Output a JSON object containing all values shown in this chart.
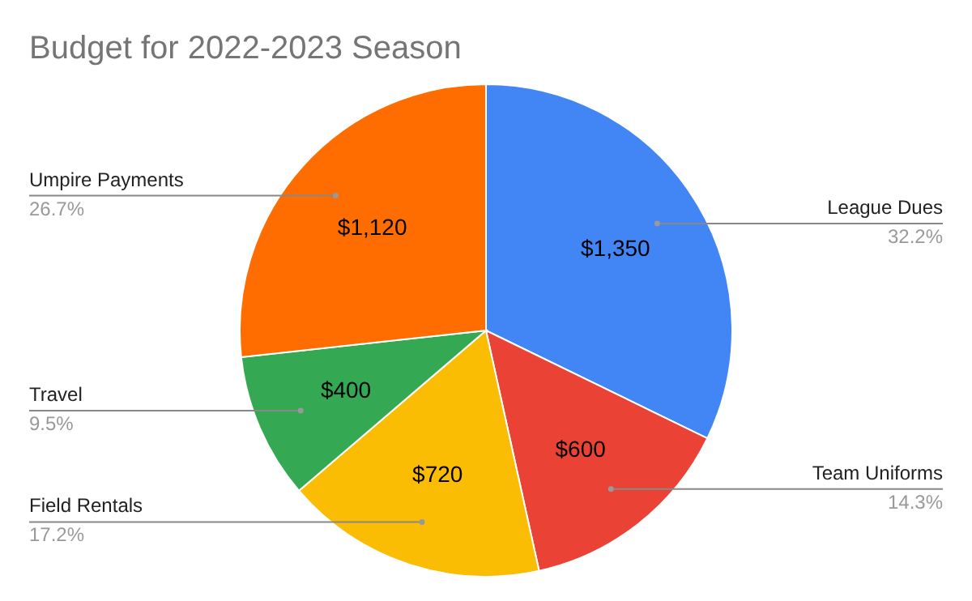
{
  "chart_data": {
    "type": "pie",
    "title": "Budget for 2022-2023 Season",
    "categories": [
      "League Dues",
      "Team Uniforms",
      "Field Rentals",
      "Travel",
      "Umpire Payments"
    ],
    "values": [
      1350,
      600,
      720,
      400,
      1120
    ],
    "colors": [
      "#4285f4",
      "#ea4335",
      "#fbbc04",
      "#34a853",
      "#ff6d01"
    ],
    "value_labels": [
      "$1,350",
      "$600",
      "$720",
      "$400",
      "$1,120"
    ],
    "annotations": [
      "32.2%",
      "14.3%",
      "17.2%",
      "9.5%",
      "26.7%"
    ]
  }
}
